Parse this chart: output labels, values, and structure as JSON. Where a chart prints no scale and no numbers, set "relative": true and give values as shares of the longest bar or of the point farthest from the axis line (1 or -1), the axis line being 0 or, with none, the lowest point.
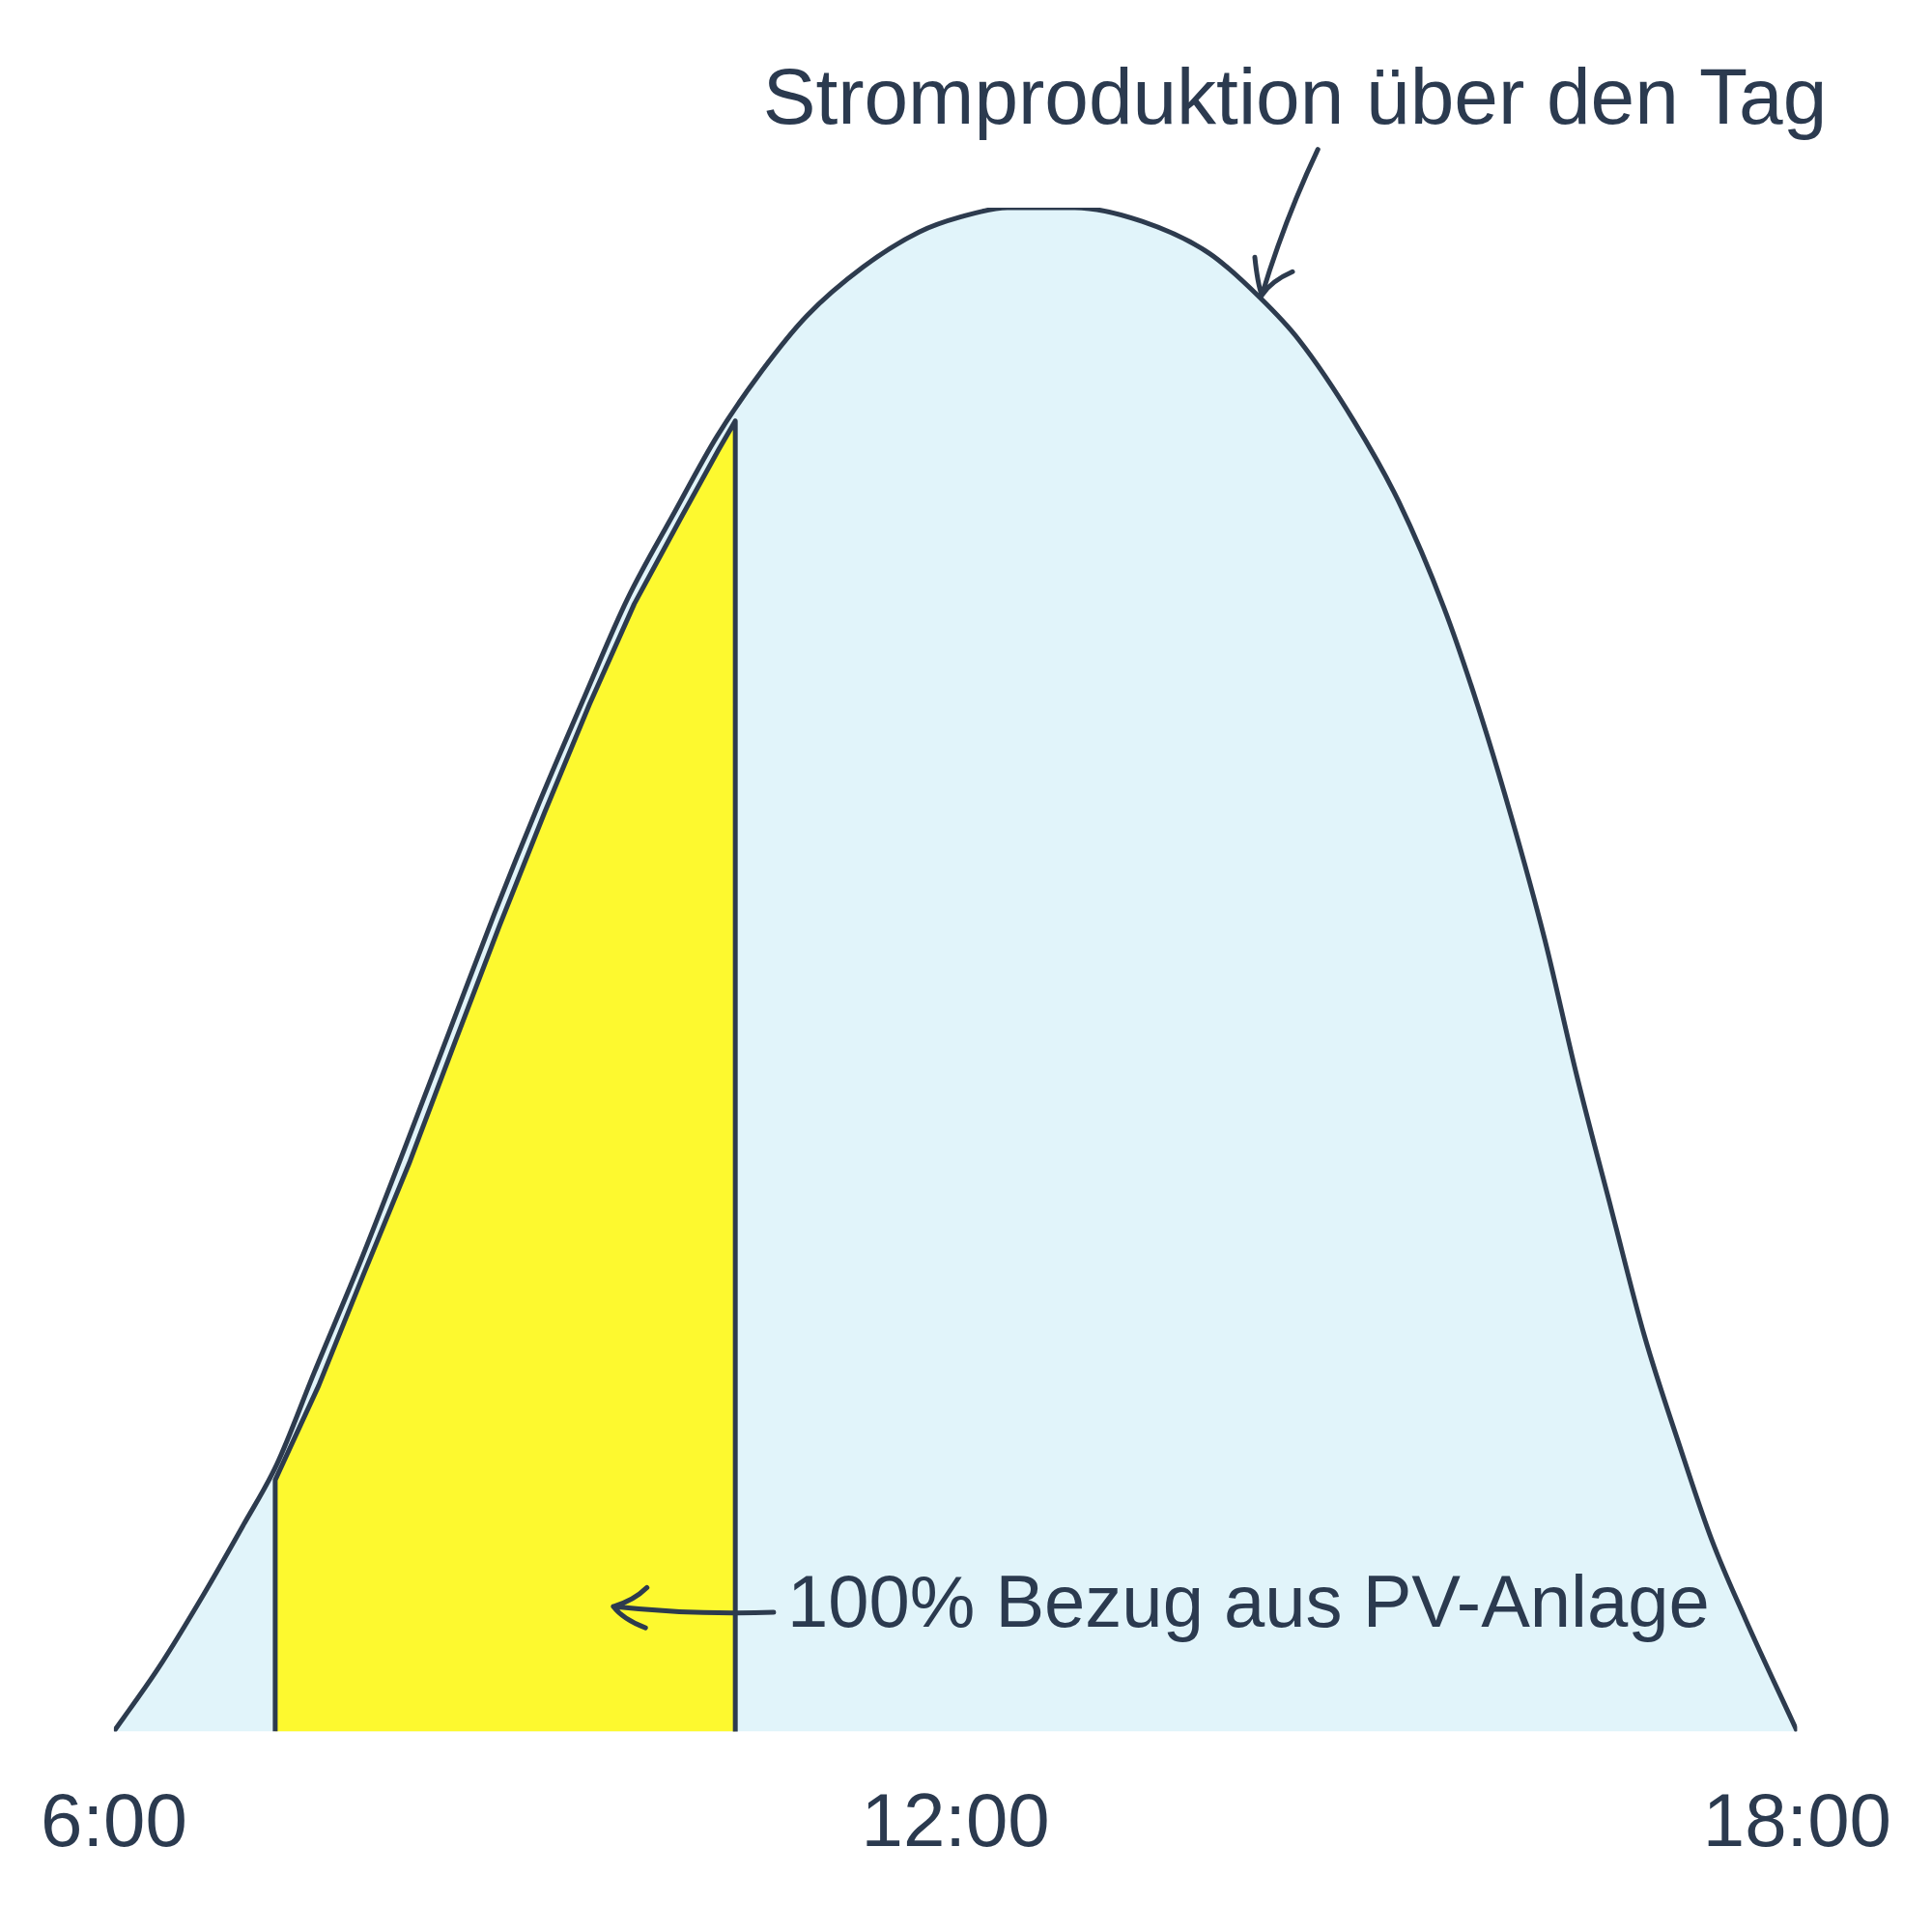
{
  "chart_data": {
    "type": "area",
    "relative": true,
    "xlim": [
      6,
      18
    ],
    "xticks": [
      {
        "value": 6,
        "label": "6:00"
      },
      {
        "value": 12,
        "label": "12:00"
      },
      {
        "value": 18,
        "label": "18:00"
      }
    ],
    "grid": false,
    "legend": false,
    "marker": "none",
    "series": [
      {
        "color": "#e1f4fa",
        "x": [
          6,
          6.32,
          6.64,
          6.92,
          7.16,
          7.43,
          7.76,
          8.07,
          8.39,
          8.71,
          9.03,
          9.35,
          9.66,
          9.99,
          10.3,
          10.62,
          10.94,
          11.34,
          11.74,
          12.04,
          12.37,
          12.85,
          13.33,
          13.81,
          14.17,
          14.45,
          14.84,
          15.16,
          15.48,
          15.72,
          15.96,
          16.2,
          16.43,
          16.68,
          16.91,
          17.16,
          17.39,
          17.63,
          18
        ],
        "values": [
          0,
          0.042,
          0.09,
          0.135,
          0.175,
          0.236,
          0.309,
          0.382,
          0.459,
          0.536,
          0.609,
          0.678,
          0.743,
          0.799,
          0.85,
          0.893,
          0.929,
          0.961,
          0.984,
          0.994,
          1,
          1,
          0.991,
          0.97,
          0.941,
          0.913,
          0.86,
          0.807,
          0.738,
          0.674,
          0.601,
          0.52,
          0.43,
          0.341,
          0.26,
          0.188,
          0.126,
          0.074,
          0
        ]
      },
      {
        "color": "#fdf92f",
        "x": [
          7.15,
          7.15,
          7.46,
          7.78,
          8.11,
          8.43,
          8.75,
          9.07,
          9.39,
          9.71,
          10.04,
          10.31,
          10.43,
          10.43
        ],
        "values": [
          0,
          0.165,
          0.227,
          0.3,
          0.374,
          0.452,
          0.529,
          0.603,
          0.674,
          0.74,
          0.796,
          0.841,
          0.86,
          0
        ]
      }
    ],
    "annotations": [
      {
        "text": "Stromproduktion über den Tag",
        "x": 14.17,
        "y": 0.94
      },
      "100% Bezug aus PV-Anlage"
    ]
  }
}
